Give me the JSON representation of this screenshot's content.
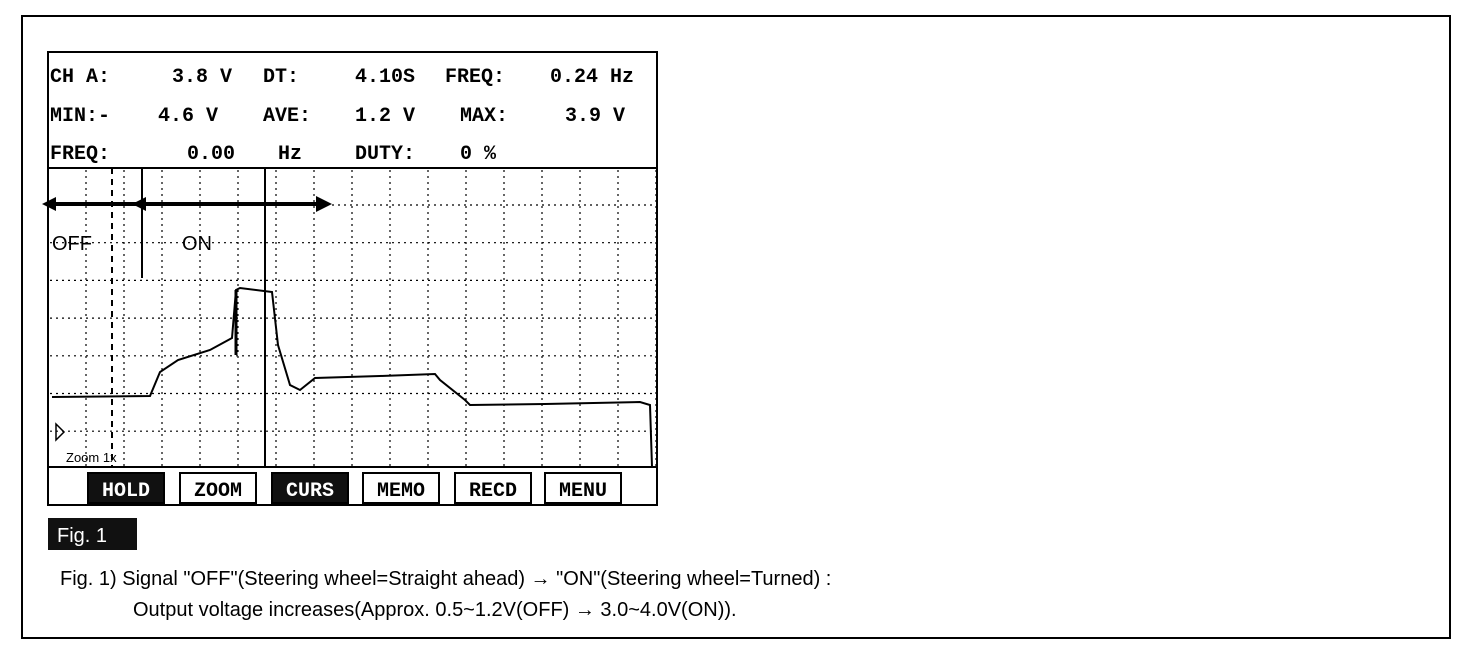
{
  "scope": {
    "header": {
      "rows": [
        [
          "CH A:",
          "3.8 V",
          "DT:",
          "4.10S",
          "FREQ:",
          "0.24 Hz"
        ],
        [
          "MIN:-",
          "4.6 V",
          "AVE:",
          "1.2 V",
          "MAX:",
          "3.9 V"
        ],
        [
          "FREQ:",
          "0.00",
          "Hz",
          "DUTY:",
          "0 %"
        ]
      ]
    },
    "labels": {
      "off": "OFF",
      "on": "ON",
      "zoom": "Zoom 1x"
    },
    "buttons": [
      "HOLD",
      "ZOOM",
      "CURS",
      "MEMO",
      "RECD",
      "MENU"
    ]
  },
  "figure": {
    "label": "Fig. 1",
    "caption": [
      "Fig. 1) Signal \"OFF\"(Steering wheel=Straight ahead) → \"ON\"(Steering wheel=Turned) :",
      "Output voltage increases(Approx. 0.5~1.2V(OFF) → 3.0~4.0V(ON))."
    ]
  }
}
